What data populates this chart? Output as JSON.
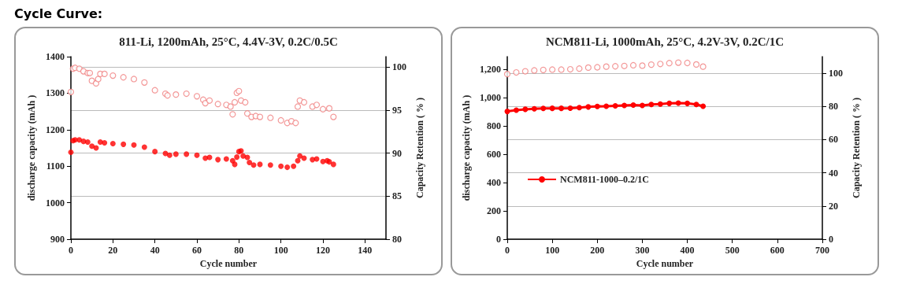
{
  "chart_data": [
    {
      "type": "scatter",
      "title": "811-Li, 1200mAh, 25°C, 4.4V-3V, 0.2C/0.5C",
      "annotations": [
        "Cycle Curve:"
      ],
      "xlabel": "Cycle number",
      "ylabel": "discharge capacity (mAh )",
      "y2label": "Capacity Retention ( % )",
      "xlim": [
        0,
        150
      ],
      "xticks": [
        0,
        20,
        40,
        60,
        80,
        100,
        120,
        140
      ],
      "ylim": [
        900,
        1400
      ],
      "yticks": [
        900,
        1000,
        1100,
        1200,
        1300,
        1400
      ],
      "y2lim": [
        80,
        101.2
      ],
      "y2ticks": [
        80,
        85,
        90,
        95,
        100
      ],
      "grid": "y",
      "legend": false,
      "marker": "circle",
      "series": [
        {
          "color": "#ff0000",
          "x": [
            0,
            1,
            2,
            4,
            6,
            8,
            10,
            12,
            14,
            16,
            20,
            25,
            30,
            35,
            40,
            45,
            47,
            50,
            55,
            60,
            64,
            66,
            70,
            74,
            77,
            78,
            79,
            80,
            81,
            82,
            84,
            85,
            87,
            90,
            95,
            100,
            103,
            106,
            108,
            109,
            111,
            115,
            117,
            120,
            122,
            123,
            125
          ],
          "values": [
            1138,
            1170,
            1172,
            1172,
            1168,
            1166,
            1155,
            1150,
            1166,
            1164,
            1162,
            1160,
            1158,
            1152,
            1140,
            1135,
            1130,
            1133,
            1133,
            1130,
            1122,
            1124,
            1118,
            1120,
            1115,
            1105,
            1125,
            1140,
            1142,
            1128,
            1124,
            1110,
            1103,
            1105,
            1103,
            1100,
            1097,
            1100,
            1115,
            1128,
            1122,
            1118,
            1120,
            1113,
            1115,
            1112,
            1105
          ]
        },
        {
          "color": "#f08080",
          "axis": "y2",
          "x": [
            0,
            1,
            2,
            4,
            6,
            8,
            9,
            10,
            12,
            13,
            14,
            16,
            20,
            25,
            30,
            35,
            40,
            45,
            46,
            50,
            55,
            60,
            63,
            64,
            66,
            70,
            74,
            76,
            77,
            78,
            79,
            80,
            81,
            83,
            84,
            86,
            88,
            90,
            95,
            100,
            103,
            105,
            107,
            108,
            109,
            111,
            115,
            117,
            120,
            123,
            125
          ],
          "values": [
            97.1,
            99.8,
            99.9,
            99.8,
            99.5,
            99.3,
            99.3,
            98.4,
            98.1,
            98.6,
            99.2,
            99.2,
            99.0,
            98.8,
            98.6,
            98.2,
            97.3,
            96.9,
            96.7,
            96.8,
            96.9,
            96.6,
            96.2,
            95.8,
            96.1,
            95.7,
            95.6,
            95.4,
            94.5,
            95.9,
            97.0,
            97.2,
            96.1,
            95.9,
            94.6,
            94.2,
            94.3,
            94.2,
            94.1,
            93.8,
            93.5,
            93.7,
            93.5,
            95.4,
            96.1,
            95.9,
            95.4,
            95.6,
            95.1,
            95.2,
            94.2
          ]
        }
      ]
    },
    {
      "type": "line",
      "title": "NCM811-Li, 1000mAh, 25°C, 4.2V-3V, 0.2C/1C",
      "xlabel": "Cycle number",
      "ylabel": "discharge capacity (mAh )",
      "y2label": "Capacity Retention ( % )",
      "xlim": [
        0,
        700
      ],
      "xticks": [
        0,
        100,
        200,
        300,
        400,
        500,
        600,
        700
      ],
      "ylim": [
        0,
        1290
      ],
      "yticks": [
        0,
        200,
        400,
        600,
        800,
        {
          "value": 1000,
          "label": "1,000"
        },
        {
          "value": 1200,
          "label": "1,200"
        }
      ],
      "y2lim": [
        0,
        110
      ],
      "y2ticks": [
        0,
        20,
        40,
        60,
        80,
        100
      ],
      "grid": "y",
      "legend": "left",
      "marker": "circle",
      "series": [
        {
          "name": "NCM811-1000–0.2/1C",
          "color": "#ff0000",
          "x": [
            0,
            20,
            40,
            60,
            80,
            100,
            120,
            140,
            160,
            180,
            200,
            220,
            240,
            260,
            280,
            300,
            320,
            340,
            360,
            380,
            400,
            420,
            435
          ],
          "values": [
            903,
            912,
            918,
            922,
            924,
            925,
            925,
            926,
            930,
            935,
            938,
            940,
            942,
            945,
            948,
            945,
            952,
            955,
            960,
            962,
            960,
            952,
            940
          ]
        },
        {
          "type": "scatter",
          "color": "#f08080",
          "axis": "y2",
          "x": [
            0,
            20,
            40,
            60,
            80,
            100,
            120,
            140,
            160,
            180,
            200,
            220,
            240,
            260,
            280,
            300,
            320,
            340,
            360,
            380,
            400,
            420,
            435
          ],
          "values": [
            99.5,
            100.5,
            101.2,
            101.7,
            102,
            102.2,
            102.2,
            102.4,
            102.8,
            103.4,
            103.6,
            104,
            104.2,
            104.4,
            104.8,
            104.6,
            105.2,
            105.6,
            106.1,
            106.4,
            106.2,
            105.3,
            104
          ]
        }
      ]
    }
  ]
}
